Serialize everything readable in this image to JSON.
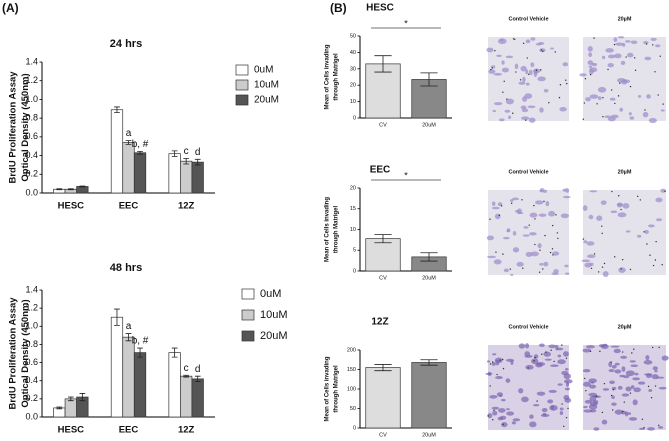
{
  "panel_labels": [
    "(A)",
    "(B)"
  ],
  "chart_data": [
    {
      "type": "bar",
      "title": "24 hrs",
      "ylabel": [
        "BrdU Proliferation Assay",
        "Optical Density (450nm)"
      ],
      "categories": [
        "HESC",
        "EEC",
        "12Z"
      ],
      "series": [
        {
          "name": "0uM",
          "color": "#ffffff",
          "values": [
            0.04,
            0.89,
            0.42
          ],
          "errors": [
            0.005,
            0.03,
            0.03
          ]
        },
        {
          "name": "10uM",
          "color": "#cccccc",
          "values": [
            0.04,
            0.54,
            0.34
          ],
          "errors": [
            0.005,
            0.02,
            0.03
          ]
        },
        {
          "name": "20uM",
          "color": "#555555",
          "values": [
            0.07,
            0.43,
            0.33
          ],
          "errors": [
            0.005,
            0.015,
            0.03
          ]
        }
      ],
      "annotations": [
        {
          "text": "a",
          "series": "10uM",
          "category": "EEC"
        },
        {
          "text": "b, #",
          "series": "20uM",
          "category": "EEC"
        },
        {
          "text": "c",
          "series": "10uM",
          "category": "12Z"
        },
        {
          "text": "d",
          "series": "20uM",
          "category": "12Z"
        }
      ],
      "ylim": [
        0,
        1.4
      ],
      "yticks": [
        {
          "value": 0,
          "label": "0.0"
        },
        0.2,
        0.4,
        0.6,
        0.8,
        {
          "value": 1,
          "label": "1.0"
        },
        1.2,
        1.4
      ],
      "legend": "right",
      "grid": false
    },
    {
      "type": "bar",
      "title": "48 hrs",
      "ylabel": [
        "BrdU Proliferation Assay",
        "Optical Density (450nm)"
      ],
      "categories": [
        "HESC",
        "EEC",
        "12Z"
      ],
      "series": [
        {
          "name": "0uM",
          "color": "#ffffff",
          "values": [
            0.1,
            1.1,
            0.71
          ],
          "errors": [
            0.01,
            0.09,
            0.05
          ]
        },
        {
          "name": "10uM",
          "color": "#cccccc",
          "values": [
            0.2,
            0.88,
            0.45
          ],
          "errors": [
            0.02,
            0.04,
            0.01
          ]
        },
        {
          "name": "20uM",
          "color": "#555555",
          "values": [
            0.22,
            0.71,
            0.42
          ],
          "errors": [
            0.04,
            0.05,
            0.03
          ]
        }
      ],
      "annotations": [
        {
          "text": "a",
          "series": "10uM",
          "category": "EEC"
        },
        {
          "text": "b, #",
          "series": "20uM",
          "category": "EEC"
        },
        {
          "text": "c",
          "series": "10uM",
          "category": "12Z"
        },
        {
          "text": "d",
          "series": "20uM",
          "category": "12Z"
        }
      ],
      "ylim": [
        0,
        1.4
      ],
      "yticks": [
        {
          "value": 0,
          "label": "0.0"
        },
        0.2,
        0.4,
        0.6,
        0.8,
        {
          "value": 1,
          "label": "1.0"
        },
        1.2,
        1.4
      ],
      "legend": "right",
      "grid": false
    },
    {
      "type": "bar",
      "title": "HESC",
      "ylabel": [
        "Mean of Cells invading",
        "through Matrigel"
      ],
      "categories": [
        "CV",
        "20uM"
      ],
      "values": [
        33,
        23.5
      ],
      "errors": [
        5,
        4
      ],
      "colors": [
        "#dddddd",
        "#888888"
      ],
      "significance": "*",
      "ylim": [
        0,
        50
      ],
      "yticks": [
        0,
        10,
        20,
        30,
        40,
        50
      ],
      "grid": false
    },
    {
      "type": "bar",
      "title": "EEC",
      "ylabel": [
        "Mean of Cells invading",
        "through Matrigel"
      ],
      "categories": [
        "CV",
        "20uM"
      ],
      "values": [
        7.8,
        3.4
      ],
      "errors": [
        1,
        1
      ],
      "colors": [
        "#dddddd",
        "#888888"
      ],
      "significance": "*",
      "ylim": [
        0,
        20
      ],
      "yticks": [
        0,
        5,
        10,
        15,
        20
      ],
      "grid": false
    },
    {
      "type": "bar",
      "title": "12Z",
      "ylabel": [
        "Mean of Cells invading",
        "through Matrigel"
      ],
      "categories": [
        "CV",
        "20uM"
      ],
      "values": [
        155,
        168
      ],
      "errors": [
        8,
        7
      ],
      "colors": [
        "#dddddd",
        "#888888"
      ],
      "ylim": [
        0,
        200
      ],
      "yticks": [
        0,
        50,
        100,
        150,
        200
      ],
      "grid": false
    }
  ],
  "micrographs": [
    [
      "Control Vehicle",
      "20µM"
    ],
    [
      "Control Vehicle",
      "20µM"
    ],
    [
      "Control Vehicle",
      "20µM"
    ]
  ]
}
